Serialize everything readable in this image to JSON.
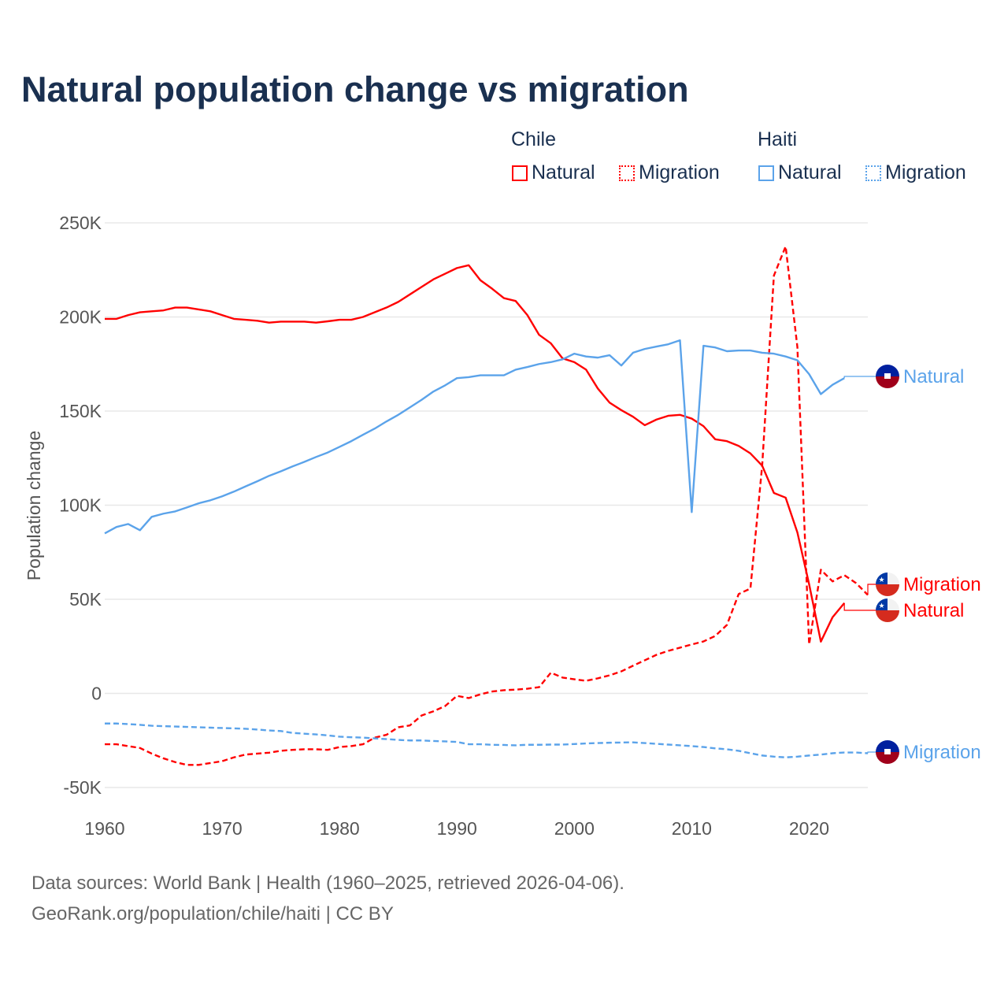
{
  "title": "Natural population change vs migration",
  "legend": {
    "groups": [
      {
        "name": "Chile",
        "items": [
          {
            "label": "Natural",
            "style": "solid",
            "color": "#ff0000"
          },
          {
            "label": "Migration",
            "style": "dotted",
            "color": "#ff0000"
          }
        ]
      },
      {
        "name": "Haiti",
        "items": [
          {
            "label": "Natural",
            "style": "solid",
            "color": "#5ba3ea"
          },
          {
            "label": "Migration",
            "style": "dotted",
            "color": "#5ba3ea"
          }
        ]
      }
    ]
  },
  "footer": {
    "line1": "Data sources: World Bank | Health (1960–2025, retrieved 2026-04-06).",
    "line2": "GeoRank.org/population/chile/haiti | CC BY"
  },
  "chart_data": {
    "type": "line",
    "title": "Natural population change vs migration",
    "xlabel": "",
    "ylabel": "Population change",
    "xlim": [
      1960,
      2025
    ],
    "ylim": [
      -50000,
      250000
    ],
    "x_ticks": [
      1960,
      1970,
      1980,
      1990,
      2000,
      2010,
      2020
    ],
    "x_tick_labels": [
      "1960",
      "1970",
      "1980",
      "1990",
      "2000",
      "2010",
      "2020"
    ],
    "y_ticks": [
      -50000,
      0,
      50000,
      100000,
      150000,
      200000,
      250000
    ],
    "y_tick_labels": [
      "-50K",
      "0",
      "50K",
      "100K",
      "150K",
      "200K",
      "250K"
    ],
    "grid": true,
    "legend_position": "top-right",
    "series": [
      {
        "name": "Chile Natural",
        "country": "Chile",
        "end_label": "Natural",
        "color": "#ff0000",
        "dash": false,
        "start_year": 1960,
        "values": [
          199000,
          199000,
          201000,
          202500,
          203000,
          203500,
          205000,
          205000,
          204000,
          203000,
          201000,
          199000,
          198500,
          198000,
          197000,
          197500,
          197500,
          197500,
          197000,
          197700,
          198500,
          198500,
          200000,
          202500,
          205000,
          208000,
          212000,
          216000,
          220000,
          223000,
          226000,
          227500,
          219500,
          215000,
          210000,
          208500,
          201000,
          190500,
          186000,
          178000,
          176000,
          172000,
          162000,
          154500,
          150500,
          147000,
          142500,
          145500,
          147500,
          148000,
          146000,
          142000,
          135000,
          134000,
          131500,
          127500,
          121000,
          106500,
          104000,
          85500,
          58000,
          27500,
          40500,
          48000
        ]
      },
      {
        "name": "Chile Migration",
        "country": "Chile",
        "end_label": "Migration",
        "color": "#ff0000",
        "dash": true,
        "start_year": 1960,
        "values": [
          -27000,
          -27000,
          -28000,
          -29000,
          -32000,
          -34500,
          -36500,
          -38000,
          -38000,
          -37000,
          -36000,
          -34000,
          -32500,
          -32000,
          -31500,
          -30500,
          -30000,
          -29700,
          -29700,
          -30000,
          -28500,
          -28000,
          -27000,
          -23500,
          -22000,
          -18000,
          -17000,
          -11700,
          -9500,
          -6700,
          -1300,
          -2500,
          -500,
          1000,
          1700,
          2000,
          2500,
          3300,
          11000,
          8400,
          7500,
          6700,
          8000,
          9600,
          11700,
          14700,
          17600,
          20500,
          22600,
          24300,
          26000,
          27600,
          30500,
          36400,
          52800,
          55700,
          121000,
          222000,
          237500,
          184000,
          26000,
          65700,
          59500,
          62800,
          58600,
          52300
        ]
      },
      {
        "name": "Haiti Natural",
        "country": "Haiti",
        "end_label": "Natural",
        "color": "#5ba3ea",
        "dash": false,
        "start_year": 1960,
        "values": [
          85000,
          88400,
          90000,
          86700,
          93800,
          95500,
          96700,
          98800,
          101000,
          102600,
          104700,
          107200,
          110000,
          112700,
          115600,
          118000,
          120600,
          123000,
          125600,
          128000,
          131000,
          134000,
          137400,
          140700,
          144500,
          148000,
          152000,
          156000,
          160400,
          163700,
          167500,
          168000,
          169000,
          169000,
          169000,
          172000,
          173400,
          175000,
          176000,
          177500,
          180500,
          179000,
          178400,
          179700,
          174200,
          181000,
          183000,
          184300,
          185500,
          187600,
          96300,
          184700,
          183800,
          181800,
          182200,
          182200,
          181000,
          180500,
          179000,
          177000,
          169600,
          159000,
          164000,
          167500
        ]
      },
      {
        "name": "Haiti Migration",
        "country": "Haiti",
        "end_label": "Migration",
        "color": "#5ba3ea",
        "dash": true,
        "start_year": 1960,
        "values": [
          -16000,
          -16000,
          -16300,
          -16700,
          -17200,
          -17400,
          -17600,
          -17800,
          -18000,
          -18200,
          -18400,
          -18600,
          -18800,
          -19200,
          -19700,
          -20000,
          -21000,
          -21400,
          -21800,
          -22300,
          -23000,
          -23300,
          -23500,
          -23900,
          -24300,
          -24700,
          -25000,
          -25000,
          -25300,
          -25500,
          -25800,
          -27000,
          -27000,
          -27300,
          -27400,
          -27600,
          -27300,
          -27300,
          -27200,
          -27200,
          -26900,
          -26600,
          -26400,
          -26200,
          -26100,
          -26000,
          -26400,
          -26800,
          -27200,
          -27600,
          -28000,
          -28500,
          -29200,
          -29700,
          -30500,
          -31800,
          -33000,
          -33600,
          -34000,
          -33600,
          -33000,
          -32500,
          -31800,
          -31400,
          -31400,
          -31800
        ]
      }
    ]
  }
}
